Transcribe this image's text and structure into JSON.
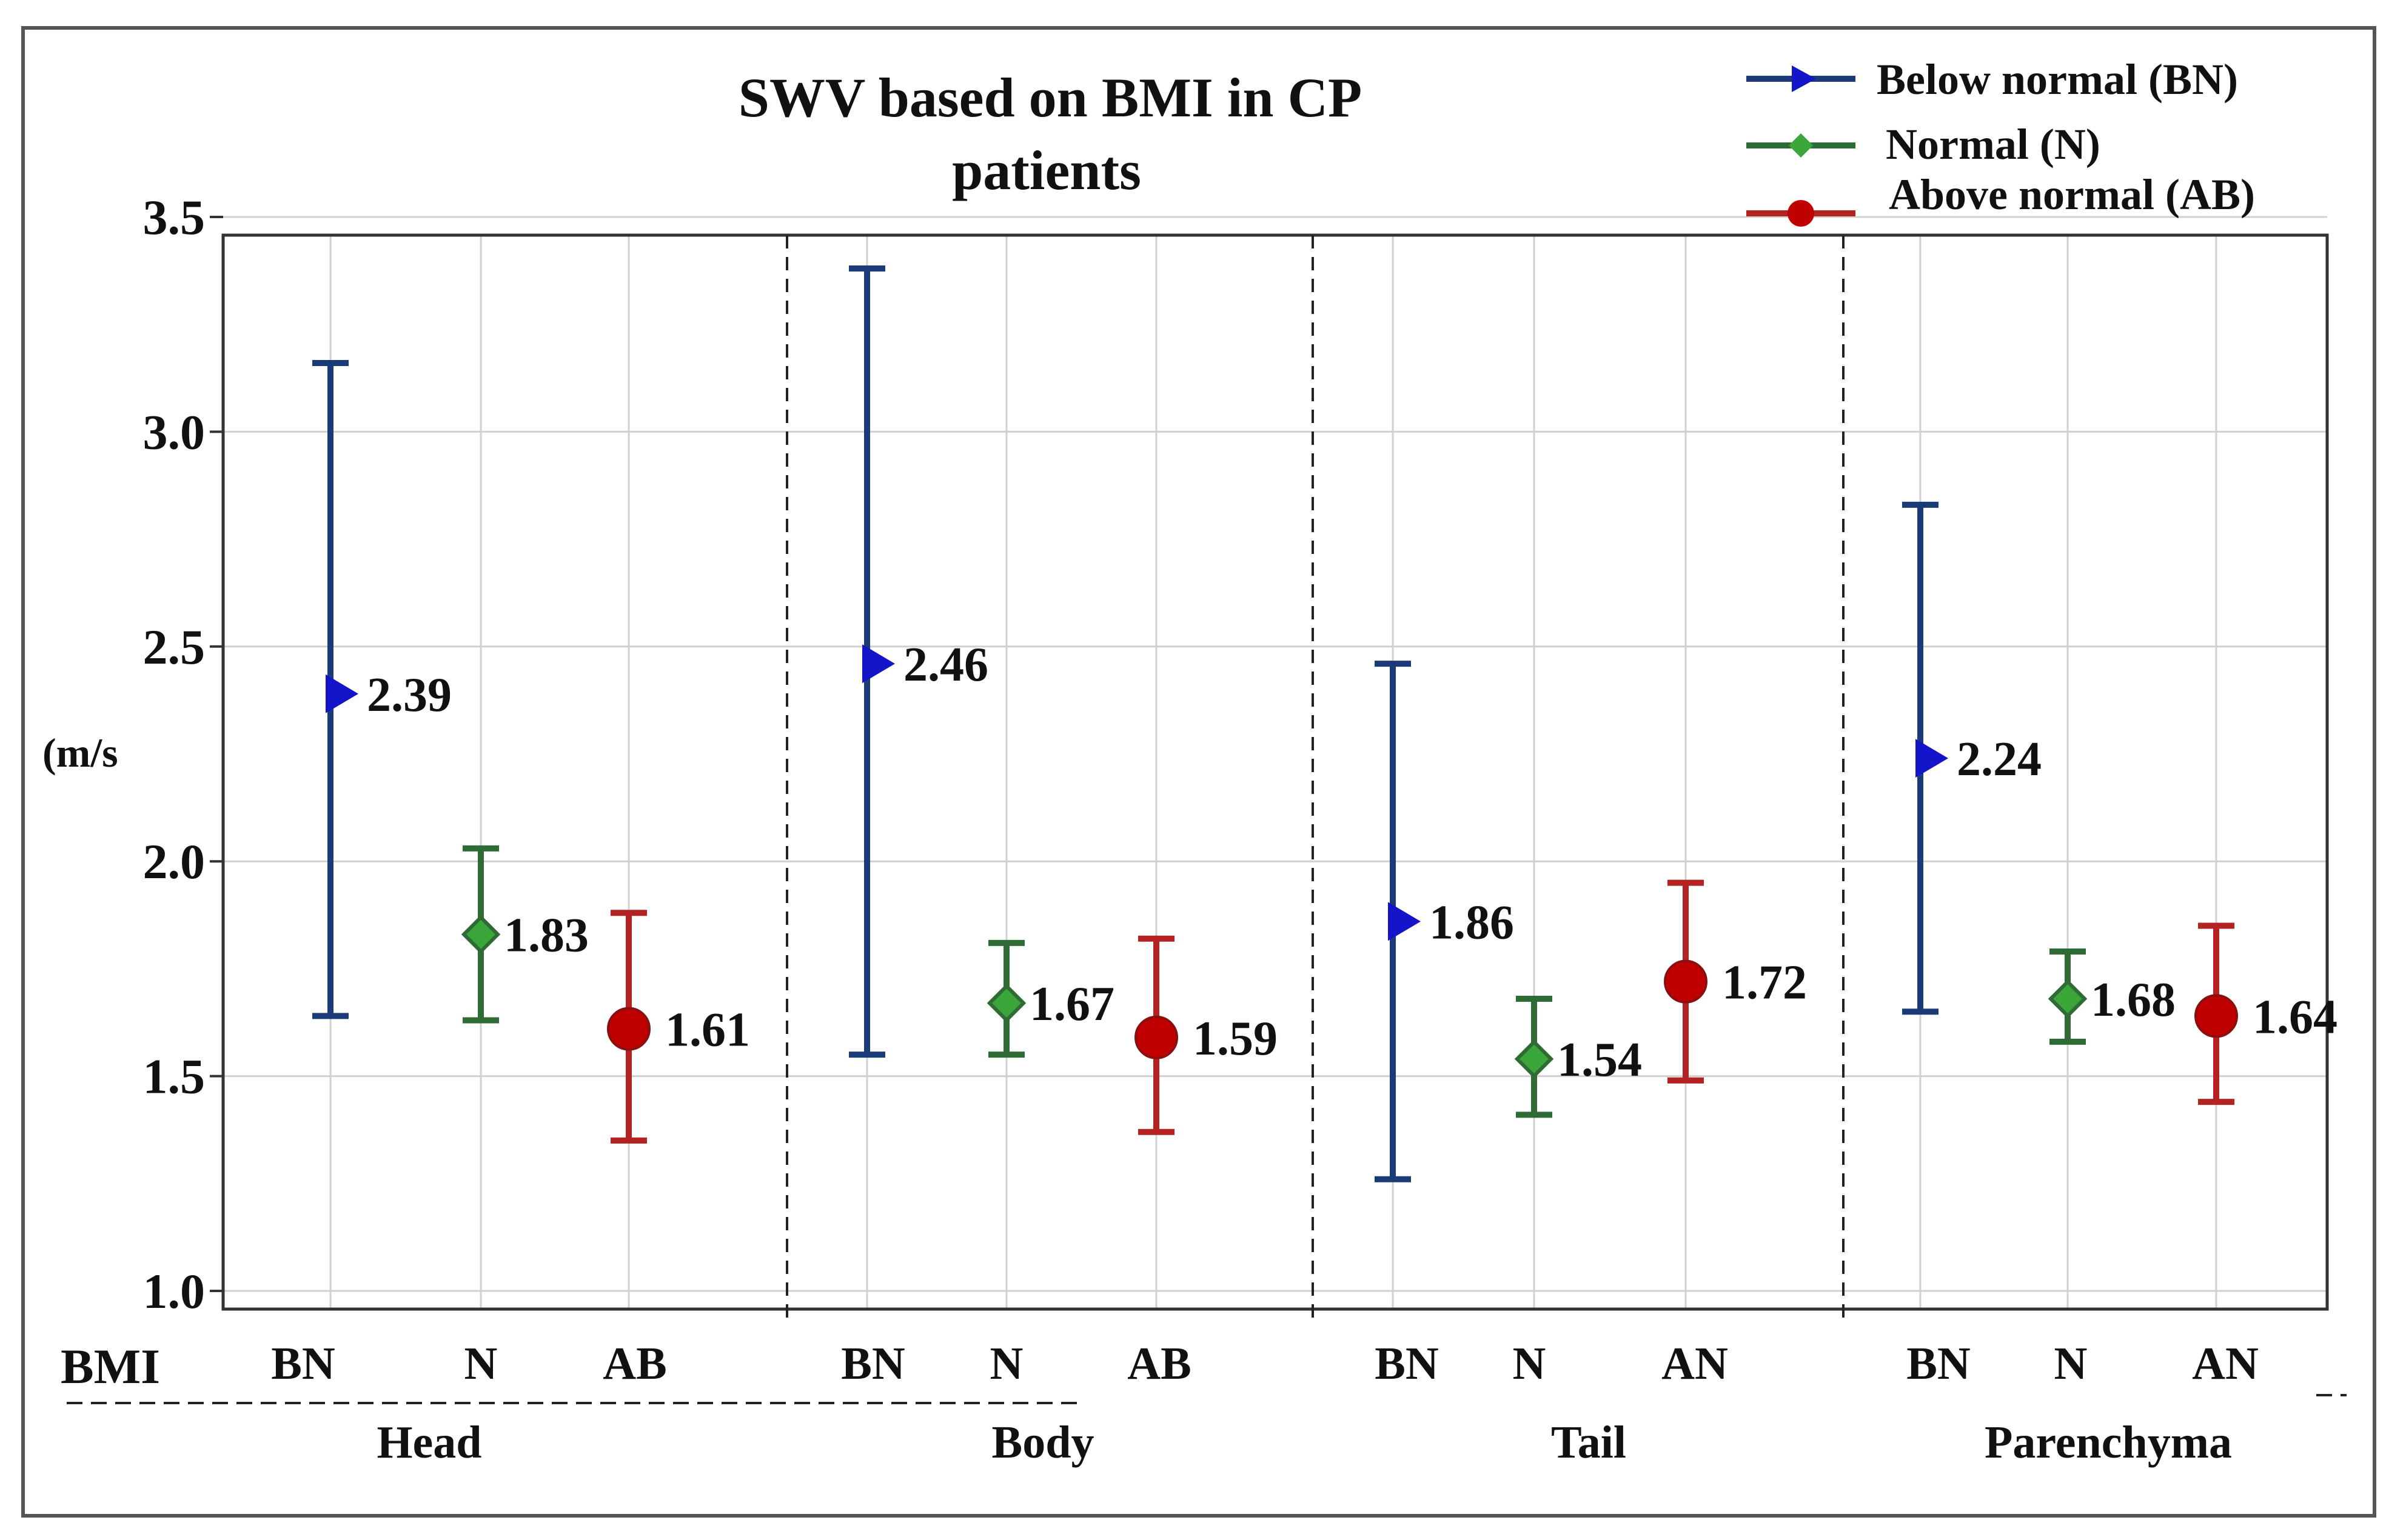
{
  "colors": {
    "BN": "#1a3a78",
    "N": "#2e6b35",
    "AB": "#b52222",
    "BN_marker": "#1414c8",
    "N_marker": "#3aa63a",
    "AB_marker": "#c00000",
    "grid": "#d0d0d0",
    "frame": "#333333"
  },
  "chart_data": {
    "type": "errorbar",
    "title_lines": [
      "SWV based on BMI in CP",
      "patients"
    ],
    "ylabel": "(m/s",
    "xlabel": "BMI",
    "ylim": [
      1.0,
      3.5
    ],
    "yticks": [
      1.0,
      1.5,
      2.0,
      2.5,
      3.0,
      3.5
    ],
    "ytick_labels": [
      "1.0",
      "1.5",
      "2.0",
      "2.5",
      "3.0",
      "3.5"
    ],
    "legend": [
      {
        "key": "BN",
        "label": "Below normal (BN)",
        "marker": "triangle-right"
      },
      {
        "key": "N",
        "label": "Normal (N)",
        "marker": "diamond"
      },
      {
        "key": "AB",
        "label": "Above normal (AB)",
        "marker": "circle"
      }
    ],
    "groups": [
      {
        "name": "Head",
        "points": [
          {
            "category": "BN",
            "series": "BN",
            "mean": 2.39,
            "label": "2.39",
            "low": 1.64,
            "high": 3.16
          },
          {
            "category": "N",
            "series": "N",
            "mean": 1.83,
            "label": "1.83",
            "low": 1.63,
            "high": 2.03
          },
          {
            "category": "AB",
            "series": "AB",
            "mean": 1.61,
            "label": "1.61",
            "low": 1.35,
            "high": 1.88
          }
        ]
      },
      {
        "name": "Body",
        "points": [
          {
            "category": "BN",
            "series": "BN",
            "mean": 2.46,
            "label": "2.46",
            "low": 1.55,
            "high": 3.38
          },
          {
            "category": "N",
            "series": "N",
            "mean": 1.67,
            "label": "1.67",
            "low": 1.55,
            "high": 1.81
          },
          {
            "category": "AB",
            "series": "AB",
            "mean": 1.59,
            "label": "1.59",
            "low": 1.37,
            "high": 1.82
          }
        ]
      },
      {
        "name": "Tail",
        "points": [
          {
            "category": "BN",
            "series": "BN",
            "mean": 1.86,
            "label": "1.86",
            "low": 1.26,
            "high": 2.46
          },
          {
            "category": "N",
            "series": "N",
            "mean": 1.54,
            "label": "1.54",
            "low": 1.41,
            "high": 1.68
          },
          {
            "category": "AN",
            "series": "AB",
            "mean": 1.72,
            "label": "1.72",
            "low": 1.49,
            "high": 1.95
          }
        ]
      },
      {
        "name": "Parenchyma",
        "points": [
          {
            "category": "BN",
            "series": "BN",
            "mean": 2.24,
            "label": "2.24",
            "low": 1.65,
            "high": 2.83
          },
          {
            "category": "N",
            "series": "N",
            "mean": 1.68,
            "label": "1.68",
            "low": 1.58,
            "high": 1.79
          },
          {
            "category": "AN",
            "series": "AB",
            "mean": 1.64,
            "label": "1.64",
            "low": 1.44,
            "high": 1.85
          }
        ]
      }
    ]
  }
}
